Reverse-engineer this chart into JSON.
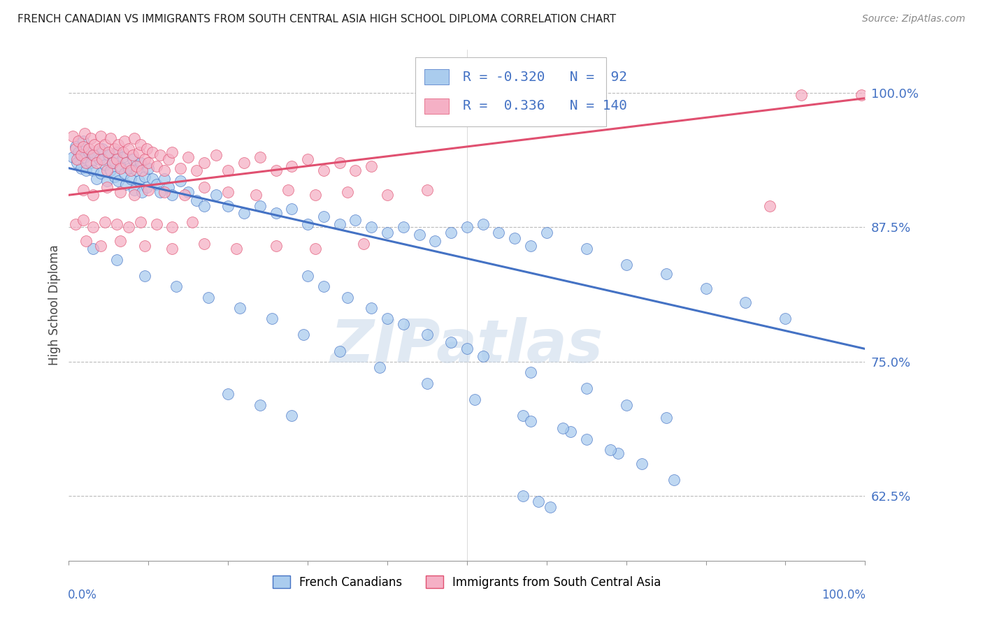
{
  "title": "FRENCH CANADIAN VS IMMIGRANTS FROM SOUTH CENTRAL ASIA HIGH SCHOOL DIPLOMA CORRELATION CHART",
  "source": "Source: ZipAtlas.com",
  "ylabel": "High School Diploma",
  "legend_label1": "French Canadians",
  "legend_label2": "Immigrants from South Central Asia",
  "r1": "-0.320",
  "n1": "92",
  "r2": "0.336",
  "n2": "140",
  "ytick_labels": [
    "62.5%",
    "75.0%",
    "87.5%",
    "100.0%"
  ],
  "ytick_values": [
    0.625,
    0.75,
    0.875,
    1.0
  ],
  "xlim": [
    0.0,
    1.0
  ],
  "ylim": [
    0.565,
    1.04
  ],
  "color_blue": "#aaccee",
  "color_pink": "#f5b0c5",
  "color_blue_line": "#4472c4",
  "color_pink_line": "#e05070",
  "color_text_blue": "#4472c4",
  "watermark_color": "#c8d8ea",
  "blue_scatter_x": [
    0.005,
    0.008,
    0.01,
    0.012,
    0.015,
    0.018,
    0.02,
    0.022,
    0.025,
    0.028,
    0.03,
    0.032,
    0.035,
    0.038,
    0.04,
    0.042,
    0.045,
    0.048,
    0.05,
    0.052,
    0.055,
    0.058,
    0.06,
    0.062,
    0.065,
    0.068,
    0.07,
    0.072,
    0.075,
    0.078,
    0.08,
    0.082,
    0.085,
    0.088,
    0.09,
    0.092,
    0.095,
    0.098,
    0.1,
    0.105,
    0.11,
    0.115,
    0.12,
    0.125,
    0.13,
    0.14,
    0.15,
    0.16,
    0.17,
    0.185,
    0.2,
    0.22,
    0.24,
    0.26,
    0.28,
    0.3,
    0.32,
    0.34,
    0.36,
    0.38,
    0.4,
    0.42,
    0.44,
    0.46,
    0.48,
    0.5,
    0.52,
    0.54,
    0.56,
    0.58,
    0.6,
    0.65,
    0.7,
    0.75,
    0.8,
    0.85,
    0.9,
    0.03,
    0.06,
    0.095,
    0.135,
    0.175,
    0.215,
    0.255,
    0.295,
    0.34,
    0.39,
    0.45,
    0.51,
    0.57,
    0.63,
    0.69
  ],
  "blue_scatter_y": [
    0.94,
    0.95,
    0.935,
    0.945,
    0.93,
    0.955,
    0.94,
    0.928,
    0.945,
    0.935,
    0.928,
    0.942,
    0.92,
    0.938,
    0.925,
    0.948,
    0.933,
    0.918,
    0.942,
    0.928,
    0.935,
    0.922,
    0.945,
    0.918,
    0.932,
    0.94,
    0.925,
    0.915,
    0.93,
    0.92,
    0.938,
    0.91,
    0.928,
    0.918,
    0.935,
    0.908,
    0.922,
    0.912,
    0.93,
    0.92,
    0.915,
    0.908,
    0.92,
    0.912,
    0.905,
    0.918,
    0.908,
    0.9,
    0.895,
    0.905,
    0.895,
    0.888,
    0.895,
    0.888,
    0.892,
    0.878,
    0.885,
    0.878,
    0.882,
    0.875,
    0.87,
    0.875,
    0.868,
    0.862,
    0.87,
    0.875,
    0.878,
    0.87,
    0.865,
    0.858,
    0.87,
    0.855,
    0.84,
    0.832,
    0.818,
    0.805,
    0.79,
    0.855,
    0.845,
    0.83,
    0.82,
    0.81,
    0.8,
    0.79,
    0.775,
    0.76,
    0.745,
    0.73,
    0.715,
    0.7,
    0.685,
    0.665
  ],
  "blue_scatter_x2": [
    0.3,
    0.32,
    0.35,
    0.38,
    0.4,
    0.42,
    0.45,
    0.48,
    0.5,
    0.52,
    0.58,
    0.65,
    0.7,
    0.75,
    0.58,
    0.62,
    0.65,
    0.68,
    0.72,
    0.76,
    0.2,
    0.24,
    0.28,
    0.57,
    0.59,
    0.605
  ],
  "blue_scatter_y2": [
    0.83,
    0.82,
    0.81,
    0.8,
    0.79,
    0.785,
    0.775,
    0.768,
    0.762,
    0.755,
    0.74,
    0.725,
    0.71,
    0.698,
    0.695,
    0.688,
    0.678,
    0.668,
    0.655,
    0.64,
    0.72,
    0.71,
    0.7,
    0.625,
    0.62,
    0.615
  ],
  "pink_scatter_x": [
    0.005,
    0.008,
    0.01,
    0.012,
    0.015,
    0.018,
    0.02,
    0.022,
    0.025,
    0.028,
    0.03,
    0.032,
    0.035,
    0.038,
    0.04,
    0.042,
    0.045,
    0.048,
    0.05,
    0.052,
    0.055,
    0.058,
    0.06,
    0.062,
    0.065,
    0.068,
    0.07,
    0.072,
    0.075,
    0.078,
    0.08,
    0.082,
    0.085,
    0.088,
    0.09,
    0.092,
    0.095,
    0.098,
    0.1,
    0.105,
    0.11,
    0.115,
    0.12,
    0.125,
    0.13,
    0.14,
    0.15,
    0.16,
    0.17,
    0.185,
    0.2,
    0.22,
    0.24,
    0.26,
    0.28,
    0.3,
    0.32,
    0.34,
    0.36,
    0.38,
    0.018,
    0.03,
    0.048,
    0.065,
    0.082,
    0.1,
    0.12,
    0.145,
    0.17,
    0.2,
    0.235,
    0.275,
    0.31,
    0.35,
    0.4,
    0.45,
    0.008,
    0.018,
    0.03,
    0.045,
    0.06,
    0.075,
    0.09,
    0.11,
    0.13,
    0.155,
    0.022,
    0.04,
    0.065,
    0.095,
    0.13,
    0.17,
    0.21,
    0.26,
    0.31,
    0.37,
    0.88,
    0.92,
    0.995
  ],
  "pink_scatter_y": [
    0.96,
    0.948,
    0.938,
    0.955,
    0.942,
    0.95,
    0.962,
    0.935,
    0.948,
    0.958,
    0.942,
    0.952,
    0.935,
    0.948,
    0.96,
    0.938,
    0.952,
    0.928,
    0.945,
    0.958,
    0.935,
    0.948,
    0.938,
    0.952,
    0.93,
    0.945,
    0.955,
    0.935,
    0.948,
    0.928,
    0.942,
    0.958,
    0.932,
    0.945,
    0.952,
    0.928,
    0.938,
    0.948,
    0.935,
    0.945,
    0.932,
    0.942,
    0.928,
    0.938,
    0.945,
    0.93,
    0.94,
    0.928,
    0.935,
    0.942,
    0.928,
    0.935,
    0.94,
    0.928,
    0.932,
    0.938,
    0.928,
    0.935,
    0.928,
    0.932,
    0.91,
    0.905,
    0.912,
    0.908,
    0.905,
    0.91,
    0.908,
    0.905,
    0.912,
    0.908,
    0.905,
    0.91,
    0.905,
    0.908,
    0.905,
    0.91,
    0.878,
    0.882,
    0.875,
    0.88,
    0.878,
    0.875,
    0.88,
    0.878,
    0.875,
    0.88,
    0.862,
    0.858,
    0.862,
    0.858,
    0.855,
    0.86,
    0.855,
    0.858,
    0.855,
    0.86,
    0.895,
    0.998,
    0.998
  ]
}
